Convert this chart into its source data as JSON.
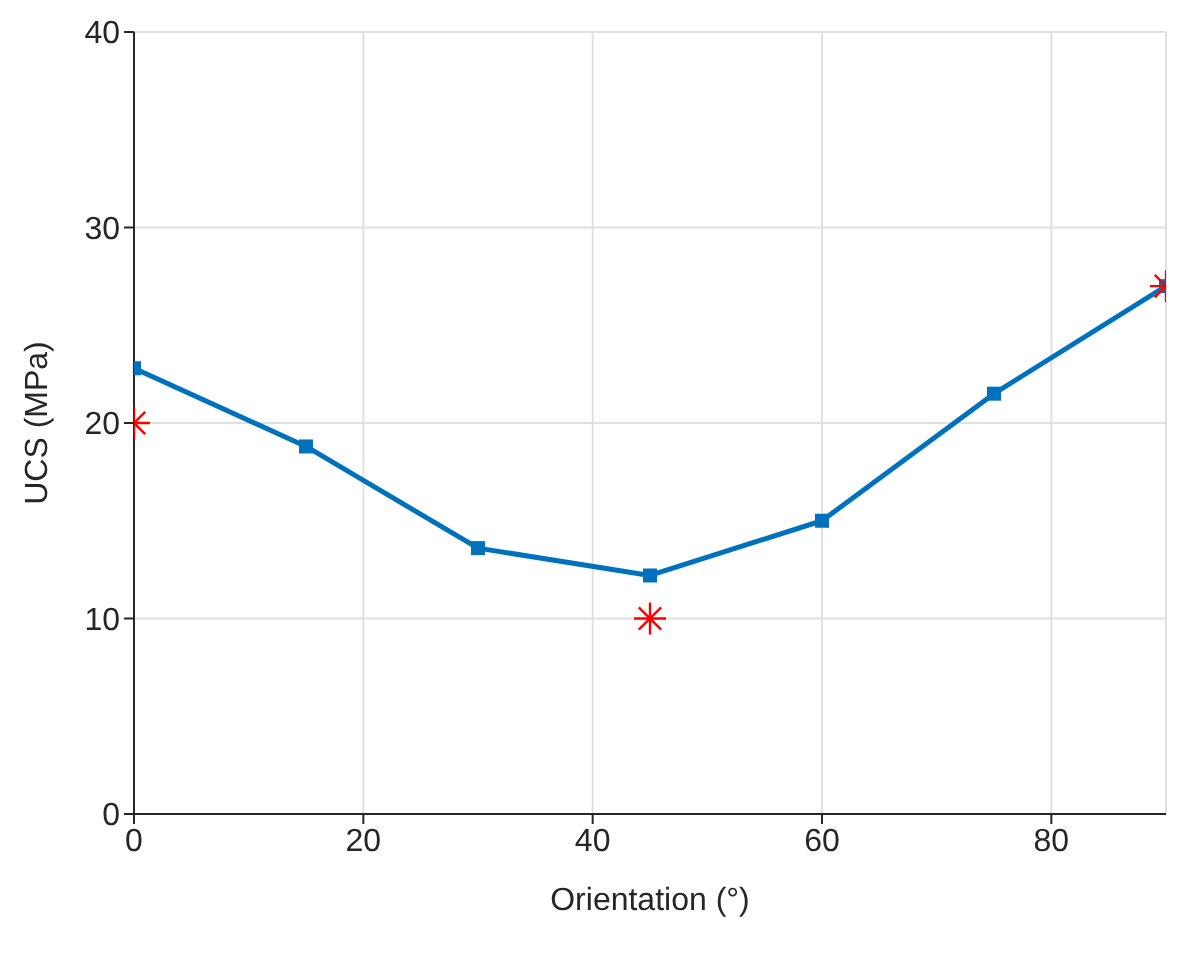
{
  "chart_data": {
    "type": "line",
    "xlabel": "Orientation (°)",
    "ylabel": "UCS (MPa)",
    "x": [
      0,
      15,
      30,
      45,
      60,
      75,
      90
    ],
    "series": [
      {
        "color": "#0072bd",
        "marker": "square",
        "values": [
          22.8,
          18.8,
          13.6,
          12.2,
          15.0,
          21.5,
          27.0
        ]
      },
      {
        "type": "scatter",
        "color": "#ff0000",
        "marker": "cross",
        "x": [
          0,
          45,
          90
        ],
        "values": [
          20,
          10,
          27
        ]
      }
    ],
    "xlim": [
      0,
      90
    ],
    "xticks": [
      0,
      20,
      40,
      60,
      80
    ],
    "ylim": [
      0,
      40
    ],
    "yticks": [
      0,
      10,
      20,
      30,
      40
    ],
    "grid": true,
    "legend": false
  }
}
